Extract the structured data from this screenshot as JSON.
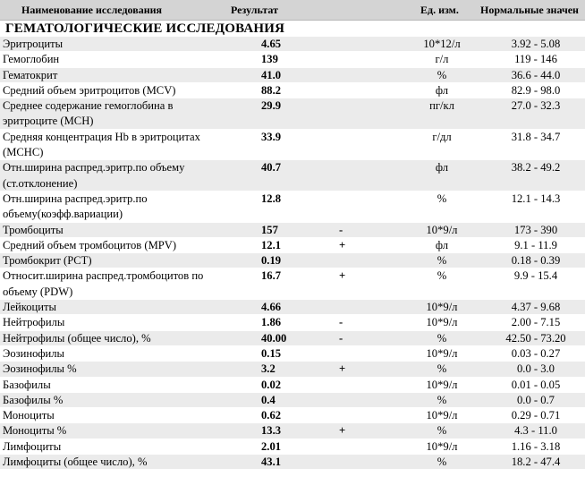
{
  "header": {
    "name": "Наименование исследования",
    "result": "Результат",
    "unit": "Ед. изм.",
    "norm": "Нормальные значен"
  },
  "section_title": "ГЕМАТОЛОГИЧЕСКИЕ ИССЛЕДОВАНИЯ",
  "rows": [
    {
      "name": "Эритроциты",
      "value": "4.65",
      "flag": "",
      "unit": "10*12/л",
      "norm": "3.92 - 5.08"
    },
    {
      "name": "Гемоглобин",
      "value": "139",
      "flag": "",
      "unit": "г/л",
      "norm": "119 - 146"
    },
    {
      "name": "Гематокрит",
      "value": "41.0",
      "flag": "",
      "unit": "%",
      "norm": "36.6 - 44.0"
    },
    {
      "name": "Средний объем эритроцитов (MCV)",
      "value": "88.2",
      "flag": "",
      "unit": "фл",
      "norm": "82.9 - 98.0"
    },
    {
      "name": "Среднее содержание гемоглобина в эритроците (MCH)",
      "value": "29.9",
      "flag": "",
      "unit": "пг/кл",
      "norm": "27.0 - 32.3"
    },
    {
      "name": "Средняя концентрация Hb в эритроцитах (MCHC)",
      "value": "33.9",
      "flag": "",
      "unit": "г/дл",
      "norm": "31.8 - 34.7"
    },
    {
      "name": "Отн.ширина распред.эритр.по объему (ст.отклонение)",
      "value": "40.7",
      "flag": "",
      "unit": "фл",
      "norm": "38.2 - 49.2"
    },
    {
      "name": "Отн.ширина распред.эритр.по объему(коэфф.вариации)",
      "value": "12.8",
      "flag": "",
      "unit": "%",
      "norm": "12.1 - 14.3"
    },
    {
      "name": "Тромбоциты",
      "value": "157",
      "flag": "-",
      "unit": "10*9/л",
      "norm": "173 - 390"
    },
    {
      "name": "Средний объем тромбоцитов (MPV)",
      "value": "12.1",
      "flag": "+",
      "unit": "фл",
      "norm": "9.1 - 11.9"
    },
    {
      "name": "Тромбокрит (PCT)",
      "value": "0.19",
      "flag": "",
      "unit": "%",
      "norm": "0.18 - 0.39"
    },
    {
      "name": "Относит.ширина распред.тромбоцитов по объему (PDW)",
      "value": "16.7",
      "flag": "+",
      "unit": "%",
      "norm": "9.9 - 15.4"
    },
    {
      "name": "Лейкоциты",
      "value": "4.66",
      "flag": "",
      "unit": "10*9/л",
      "norm": "4.37 - 9.68"
    },
    {
      "name": "Нейтрофилы",
      "value": "1.86",
      "flag": "-",
      "unit": "10*9/л",
      "norm": "2.00 - 7.15"
    },
    {
      "name": "Нейтрофилы (общее число), %",
      "value": "40.00",
      "flag": "-",
      "unit": "%",
      "norm": "42.50 - 73.20"
    },
    {
      "name": "Эозинофилы",
      "value": "0.15",
      "flag": "",
      "unit": "10*9/л",
      "norm": "0.03 - 0.27"
    },
    {
      "name": "Эозинофилы %",
      "value": "3.2",
      "flag": "+",
      "unit": "%",
      "norm": "0.0 - 3.0"
    },
    {
      "name": "Базофилы",
      "value": "0.02",
      "flag": "",
      "unit": "10*9/л",
      "norm": "0.01 - 0.05"
    },
    {
      "name": "Базофилы %",
      "value": "0.4",
      "flag": "",
      "unit": "%",
      "norm": "0.0 - 0.7"
    },
    {
      "name": "Моноциты",
      "value": "0.62",
      "flag": "",
      "unit": "10*9/л",
      "norm": "0.29 - 0.71"
    },
    {
      "name": "Моноциты %",
      "value": "13.3",
      "flag": "+",
      "unit": "%",
      "norm": "4.3 - 11.0"
    },
    {
      "name": "Лимфоциты",
      "value": "2.01",
      "flag": "",
      "unit": "10*9/л",
      "norm": "1.16 - 3.18"
    },
    {
      "name": "Лимфоциты (общее число), %",
      "value": "43.1",
      "flag": "",
      "unit": "%",
      "norm": "18.2 - 47.4"
    }
  ]
}
